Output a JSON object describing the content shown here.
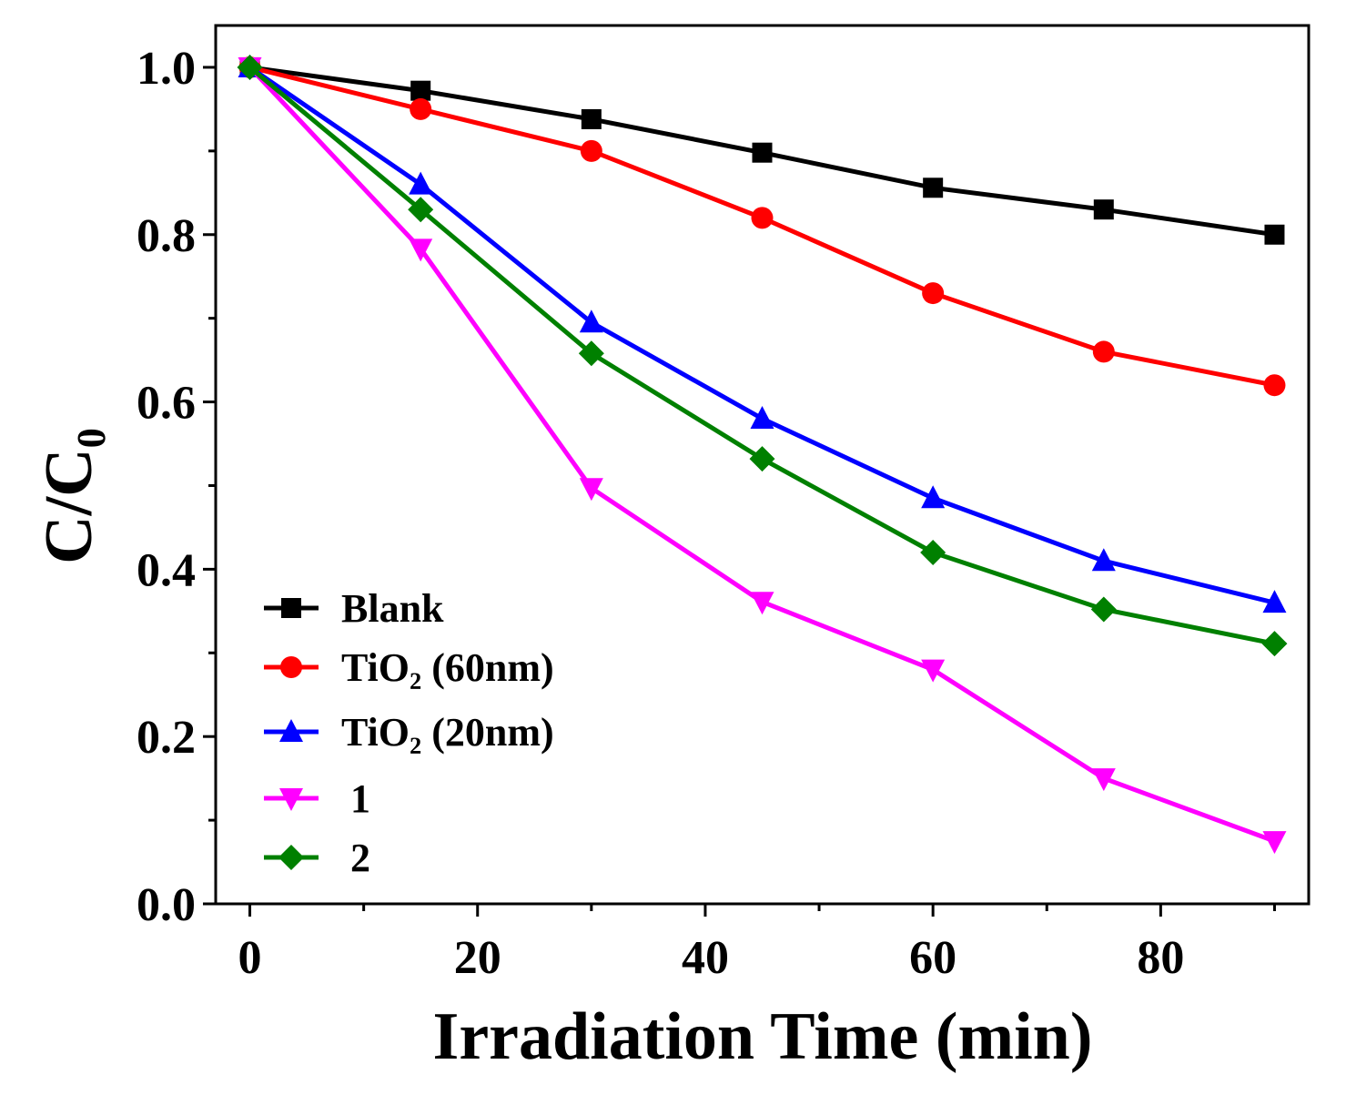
{
  "chart_data": {
    "type": "line",
    "title": "",
    "xlabel": "Irradiation Time (min)",
    "ylabel": "C/C₀",
    "xlim": [
      -3,
      93
    ],
    "ylim": [
      0,
      1.05
    ],
    "x_major_ticks": [
      0,
      20,
      40,
      60,
      80
    ],
    "x_minor_ticks": [
      10,
      30,
      50,
      70,
      90
    ],
    "y_major_ticks": [
      0.0,
      0.2,
      0.4,
      0.6,
      0.8,
      1.0
    ],
    "y_minor_ticks": [
      0.1,
      0.3,
      0.5,
      0.7,
      0.9
    ],
    "x_tick_labels": [
      "0",
      "20",
      "40",
      "60",
      "80"
    ],
    "y_tick_labels": [
      "0.0",
      "0.2",
      "0.4",
      "0.6",
      "0.8",
      "1.0"
    ],
    "grid": false,
    "legend_position": "bottom-left",
    "x": [
      0,
      15,
      30,
      45,
      60,
      75,
      90
    ],
    "series": [
      {
        "name": "Blank",
        "color": "#000000",
        "marker": "square",
        "values": [
          1.0,
          0.972,
          0.938,
          0.898,
          0.856,
          0.83,
          0.8
        ]
      },
      {
        "name": "TiO₂ (60nm)",
        "color": "#ff0000",
        "marker": "circle",
        "values": [
          1.0,
          0.95,
          0.9,
          0.82,
          0.73,
          0.66,
          0.62
        ]
      },
      {
        "name": "TiO₂ (20nm)",
        "color": "#0000ff",
        "marker": "triangle-up",
        "values": [
          1.0,
          0.86,
          0.695,
          0.58,
          0.485,
          0.41,
          0.36
        ]
      },
      {
        "name": "1",
        "color": "#ff00ff",
        "marker": "triangle-down",
        "values": [
          1.0,
          0.783,
          0.497,
          0.361,
          0.28,
          0.15,
          0.075
        ]
      },
      {
        "name": "2",
        "color": "#008000",
        "marker": "diamond",
        "values": [
          1.0,
          0.83,
          0.658,
          0.532,
          0.42,
          0.352,
          0.311
        ]
      }
    ]
  }
}
